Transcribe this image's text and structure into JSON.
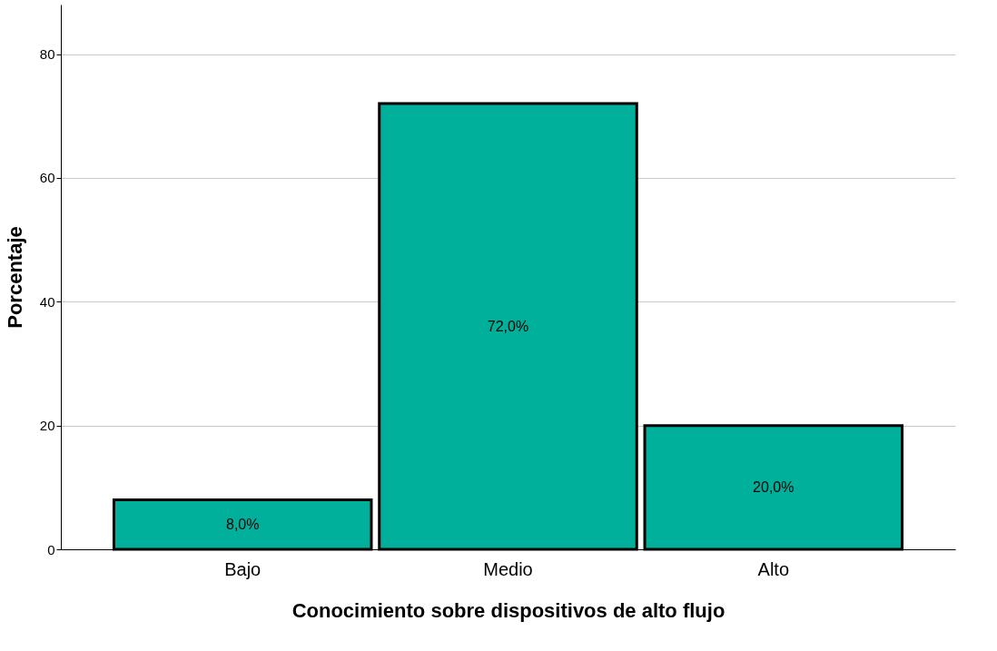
{
  "chart_data": {
    "type": "bar",
    "xlabel": "Conocimiento sobre dispositivos de alto flujo",
    "ylabel": "Porcentaje",
    "categories": [
      "Bajo",
      "Medio",
      "Alto"
    ],
    "values": [
      8,
      72,
      20
    ],
    "value_labels": [
      "8,0%",
      "72,0%",
      "20,0%"
    ],
    "color": "#00b09b",
    "ylim": [
      0,
      88
    ],
    "yticks": [
      0,
      20,
      40,
      60,
      80
    ],
    "grid": "y"
  }
}
